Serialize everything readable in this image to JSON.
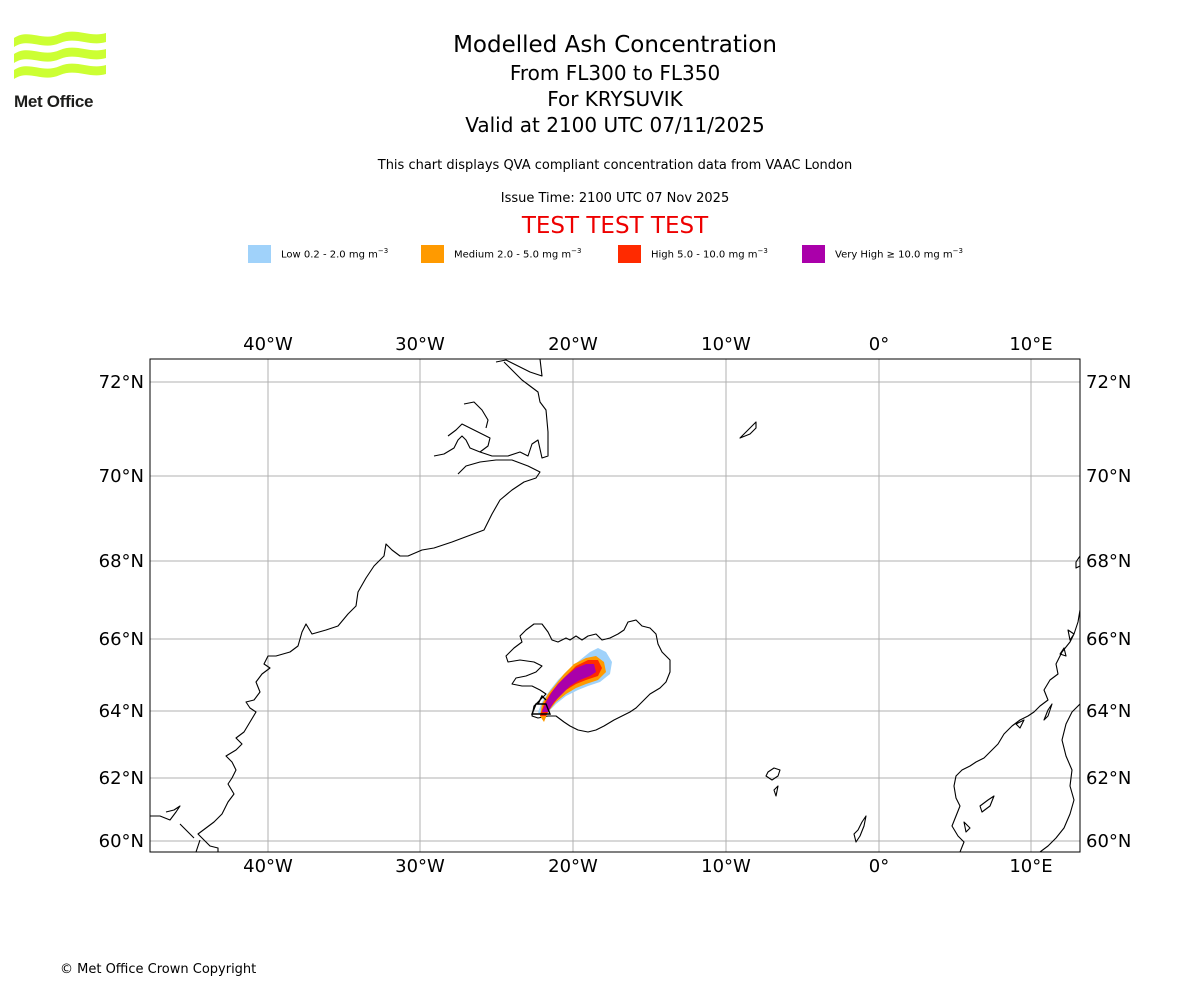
{
  "logo": {
    "text": "Met Office",
    "color": "#ccff33"
  },
  "title": {
    "line1": "Modelled Ash Concentration",
    "line2": "From FL300 to FL350",
    "line3": "For KRYSUVIK",
    "line4": "Valid at 2100 UTC 07/11/2025"
  },
  "description": "This chart displays QVA compliant concentration data from VAAC London",
  "issue_time": "Issue Time: 2100 UTC 07 Nov 2025",
  "test_banner": "TEST TEST TEST",
  "legend": [
    {
      "label": "Low 0.2 - 2.0 mg m",
      "exp": "−3",
      "color": "#a0d2fa"
    },
    {
      "label": "Medium 2.0 - 5.0 mg m",
      "exp": "−3",
      "color": "#ff9a00"
    },
    {
      "label": "High 5.0 - 10.0 mg m",
      "exp": "−3",
      "color": "#ff2a00"
    },
    {
      "label": "Very High  ≥  10.0 mg m",
      "exp": "−3",
      "color": "#aa00aa"
    }
  ],
  "map": {
    "lon_ticks": [
      "40°W",
      "30°W",
      "20°W",
      "10°W",
      "0°",
      "10°E"
    ],
    "lat_ticks": [
      "72°N",
      "70°N",
      "68°N",
      "66°N",
      "64°N",
      "62°N",
      "60°N"
    ],
    "grid_color": "#b0b0b0",
    "coast_color": "#000000"
  },
  "copyright": "© Met Office Crown Copyright"
}
